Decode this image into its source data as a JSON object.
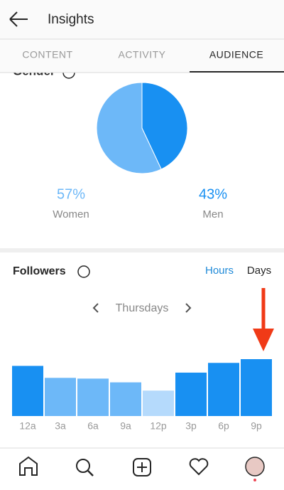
{
  "header": {
    "title": "Insights"
  },
  "tabs": [
    "CONTENT",
    "ACTIVITY",
    "AUDIENCE"
  ],
  "followers": {
    "toggle": [
      "Hours",
      "Days"
    ]
  },
  "chart_data": [
    {
      "type": "pie",
      "title": "Gender",
      "categories": [
        "Women",
        "Men"
      ],
      "values": [
        57,
        43
      ],
      "value_labels": [
        "57%",
        "43%"
      ],
      "colors": [
        "#6db8f8",
        "#1890f2"
      ]
    },
    {
      "type": "bar",
      "title": "Followers",
      "subtitle": "Thursdays",
      "categories": [
        "12a",
        "3a",
        "6a",
        "9a",
        "12p",
        "3p",
        "6p",
        "9p"
      ],
      "values": [
        67,
        51,
        50,
        45,
        34,
        58,
        71,
        76
      ],
      "colors": [
        "#1890f2",
        "#6db8f8",
        "#6db8f8",
        "#6db8f8",
        "#b5dafc",
        "#1890f2",
        "#1890f2",
        "#1890f2"
      ]
    }
  ]
}
